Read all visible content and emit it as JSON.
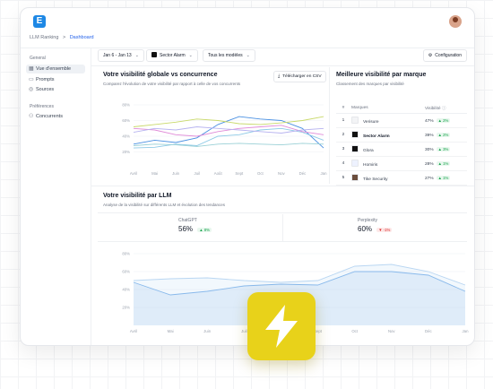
{
  "app": {
    "logo_letter": "E"
  },
  "breadcrumb": {
    "root": "LLM Ranking",
    "separator": ">",
    "current": "Dashboard"
  },
  "sidebar": {
    "section_general": "General",
    "items": [
      {
        "label": "Vue d'ensemble",
        "icon": "grid-icon",
        "active": true
      },
      {
        "label": "Prompts",
        "icon": "chat-icon",
        "active": false
      },
      {
        "label": "Sources",
        "icon": "globe-icon",
        "active": false
      }
    ],
    "section_prefs": "Préférences",
    "pref_items": [
      {
        "label": "Concurrents",
        "icon": "users-icon"
      }
    ]
  },
  "filters": {
    "date_range": "Jan 6 - Jan 13",
    "brand": "Sector Alarm",
    "models": "Tous les modèles"
  },
  "config_label": "Configuration",
  "visibility_panel": {
    "title": "Votre visibilité globale vs concurrence",
    "subtitle": "Comparez l'évolution de votre visibilité par rapport à celle de vos concurrents",
    "csv_label": "Télécharger en CSV"
  },
  "ranking_panel": {
    "title": "Meilleure visibilité par marque",
    "subtitle": "Classement des marques par visibilité",
    "headers": [
      "#",
      "Marques",
      "Visibilité"
    ],
    "rows": [
      {
        "rank": "1",
        "brand": "Verisure",
        "visibility": "47%",
        "delta": "2%",
        "icon_color": "#f3f4f6",
        "bold": false
      },
      {
        "rank": "2",
        "brand": "Sector Alarm",
        "visibility": "39%",
        "delta": "2%",
        "icon_color": "#111111",
        "bold": true
      },
      {
        "rank": "3",
        "brand": "Glora",
        "visibility": "30%",
        "delta": "3%",
        "icon_color": "#111111",
        "bold": false
      },
      {
        "rank": "4",
        "brand": "Homiris",
        "visibility": "28%",
        "delta": "1%",
        "icon_color": "#eef2ff",
        "bold": false
      },
      {
        "rank": "5",
        "brand": "Tike Security",
        "visibility": "27%",
        "delta": "1%",
        "icon_color": "#6b4e3d",
        "bold": false
      }
    ]
  },
  "llm_panel": {
    "title": "Votre visibilité par LLM",
    "subtitle": "Analyse de la visibilité sur différents LLM et évolution des tendances",
    "llms": [
      {
        "name": "ChatGPT",
        "value": "56%",
        "delta": "8%",
        "direction": "up"
      },
      {
        "name": "Perplexity",
        "value": "60%",
        "delta": "-1%",
        "direction": "down"
      }
    ]
  },
  "chart_data": [
    {
      "type": "line",
      "categories": [
        "Avril",
        "Mai",
        "Juin",
        "Juil",
        "Août",
        "Sept",
        "Oct",
        "Nov",
        "Déc",
        "Jan"
      ],
      "yticks": [
        "20%",
        "40%",
        "60%",
        "80%"
      ],
      "ylim": [
        0,
        80
      ],
      "series": [
        {
          "color": "#4a90e2",
          "values": [
            30,
            35,
            32,
            38,
            55,
            65,
            62,
            60,
            50,
            25
          ]
        },
        {
          "color": "#8ecae6",
          "values": [
            25,
            26,
            30,
            28,
            40,
            42,
            48,
            50,
            45,
            35
          ]
        },
        {
          "color": "#c9d96b",
          "values": [
            52,
            55,
            58,
            62,
            60,
            56,
            55,
            57,
            60,
            65
          ]
        },
        {
          "color": "#e08bd8",
          "values": [
            50,
            48,
            42,
            40,
            46,
            50,
            52,
            54,
            46,
            42
          ]
        },
        {
          "color": "#b7b3f0",
          "values": [
            45,
            50,
            48,
            52,
            50,
            48,
            46,
            44,
            48,
            50
          ]
        },
        {
          "color": "#9ad0d6",
          "values": [
            28,
            30,
            29,
            27,
            30,
            31,
            30,
            29,
            31,
            30
          ]
        }
      ]
    },
    {
      "type": "area",
      "categories": [
        "Avril",
        "Mai",
        "Juin",
        "Juil",
        "Août",
        "Sept",
        "Oct",
        "Nov",
        "Déc",
        "Jan"
      ],
      "yticks": [
        "20%",
        "40%",
        "60%",
        "80%"
      ],
      "ylim": [
        0,
        80
      ],
      "series": [
        {
          "color": "#7fb3ea",
          "values": [
            48,
            34,
            38,
            44,
            46,
            45,
            60,
            60,
            56,
            38
          ]
        },
        {
          "color": "#b9d6f2",
          "values": [
            50,
            52,
            53,
            50,
            48,
            50,
            66,
            68,
            60,
            45
          ]
        }
      ]
    }
  ]
}
